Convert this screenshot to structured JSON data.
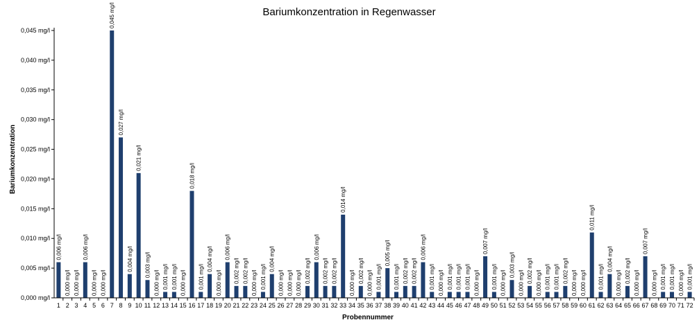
{
  "chart_data": {
    "type": "bar",
    "title": "Bariumkonzentration  in Regenwasser",
    "xlabel": "Probennummer",
    "ylabel": "Bariumkonzentration",
    "ylim": [
      0,
      0.045
    ],
    "yticks": [
      "0,000 mg/l",
      "0,005 mg/l",
      "0,010 mg/l",
      "0,015 mg/l",
      "0,020 mg/l",
      "0,025 mg/l",
      "0,030 mg/l",
      "0,035 mg/l",
      "0,040 mg/l",
      "0,045 mg/l"
    ],
    "grid": false,
    "bar_color": "#1f3f6e",
    "categories": [
      "1",
      "2",
      "3",
      "4",
      "5",
      "6",
      "7",
      "8",
      "9",
      "10",
      "11",
      "12",
      "13",
      "14",
      "15",
      "16",
      "17",
      "18",
      "19",
      "20",
      "21",
      "22",
      "23",
      "24",
      "25",
      "26",
      "27",
      "28",
      "29",
      "30",
      "31",
      "32",
      "33",
      "34",
      "35",
      "36",
      "37",
      "38",
      "39",
      "40",
      "41",
      "42",
      "43",
      "44",
      "45",
      "46",
      "47",
      "48",
      "49",
      "50",
      "51",
      "52",
      "53",
      "54",
      "55",
      "56",
      "57",
      "58",
      "59",
      "60",
      "61",
      "62",
      "63",
      "64",
      "65",
      "66",
      "67",
      "68",
      "69",
      "70",
      "71",
      "72"
    ],
    "values": [
      0.006,
      0,
      0,
      0.006,
      0,
      0,
      0.045,
      0.027,
      0.004,
      0.021,
      0.003,
      0,
      0.001,
      0.001,
      0,
      0.018,
      0.001,
      0.004,
      0,
      0.006,
      0.002,
      0.002,
      0,
      0.001,
      0.004,
      0,
      0,
      0,
      0.002,
      0.006,
      0.002,
      0.002,
      0.014,
      0,
      0.002,
      0,
      0.001,
      0.005,
      0.001,
      0.002,
      0.002,
      0.006,
      0.001,
      0,
      0.001,
      0.001,
      0.001,
      0,
      0.007,
      0.001,
      0,
      0.003,
      0,
      0.002,
      0,
      0.001,
      0.001,
      0.002,
      0,
      0,
      0.011,
      0.001,
      0.004,
      0,
      0.002,
      0,
      0.007,
      0,
      0.001,
      0.001,
      0,
      0.001
    ],
    "labels": [
      "0,006 mg/l",
      "0,000 mg/l",
      "0,000 mg/l",
      "0,006 mg/l",
      "0,000 mg/l",
      "0,000 mg/l",
      "0,045 mg/l",
      "0,027 mg/l",
      "0,004 mg/l",
      "0,021 mg/l",
      "0,003 mg/l",
      "0,000 mg/l",
      "0,001 mg/l",
      "0,001 mg/l",
      "0,000 mg/l",
      "0,018 mg/l",
      "0,001 mg/l",
      "0,004 mg/l",
      "0,000 mg/l",
      "0,006 mg/l",
      "0,002 mg/l",
      "0,002 mg/l",
      "0,000 mg/l",
      "0,001 mg/l",
      "0,004 mg/l",
      "0,000 mg/l",
      "0,000 mg/l",
      "0,000 mg/l",
      "0,002 mg/l",
      "0,006 mg/l",
      "0,002 mg/l",
      "0,002 mg/l",
      "0,014 mg/l",
      "0,000 mg/l",
      "0,002 mg/l",
      "0,000 mg/l",
      "0,001 mg/l",
      "0,005 mg/l",
      "0,001 mg/l",
      "0,002 mg/l",
      "0,002 mg/l",
      "0,006 mg/l",
      "0,001 mg/l",
      "0,000 mg/l",
      "0,001 mg/l",
      "0,001 mg/l",
      "0,001 mg/l",
      "0,000 mg/l",
      "0,007 mg/l",
      "0,001 mg/l",
      "0,000 mg/l",
      "0,003 mg/l",
      "0,000 mg/l",
      "0,002 mg/l",
      "0,000 mg/l",
      "0,001 mg/l",
      "0,001 mg/l",
      "0,002 mg/l",
      "0,000 mg/l",
      "0,000 mg/l",
      "0,011 mg/l",
      "0,001 mg/l",
      "0,004 mg/l",
      "0,000 mg/l",
      "0,002 mg/l",
      "0,000 mg/l",
      "0,007 mg/l",
      "0,000 mg/l",
      "0,001 mg/l",
      "0,001 mg/l",
      "0,000 mg/l",
      "0,001 mg/l"
    ]
  }
}
